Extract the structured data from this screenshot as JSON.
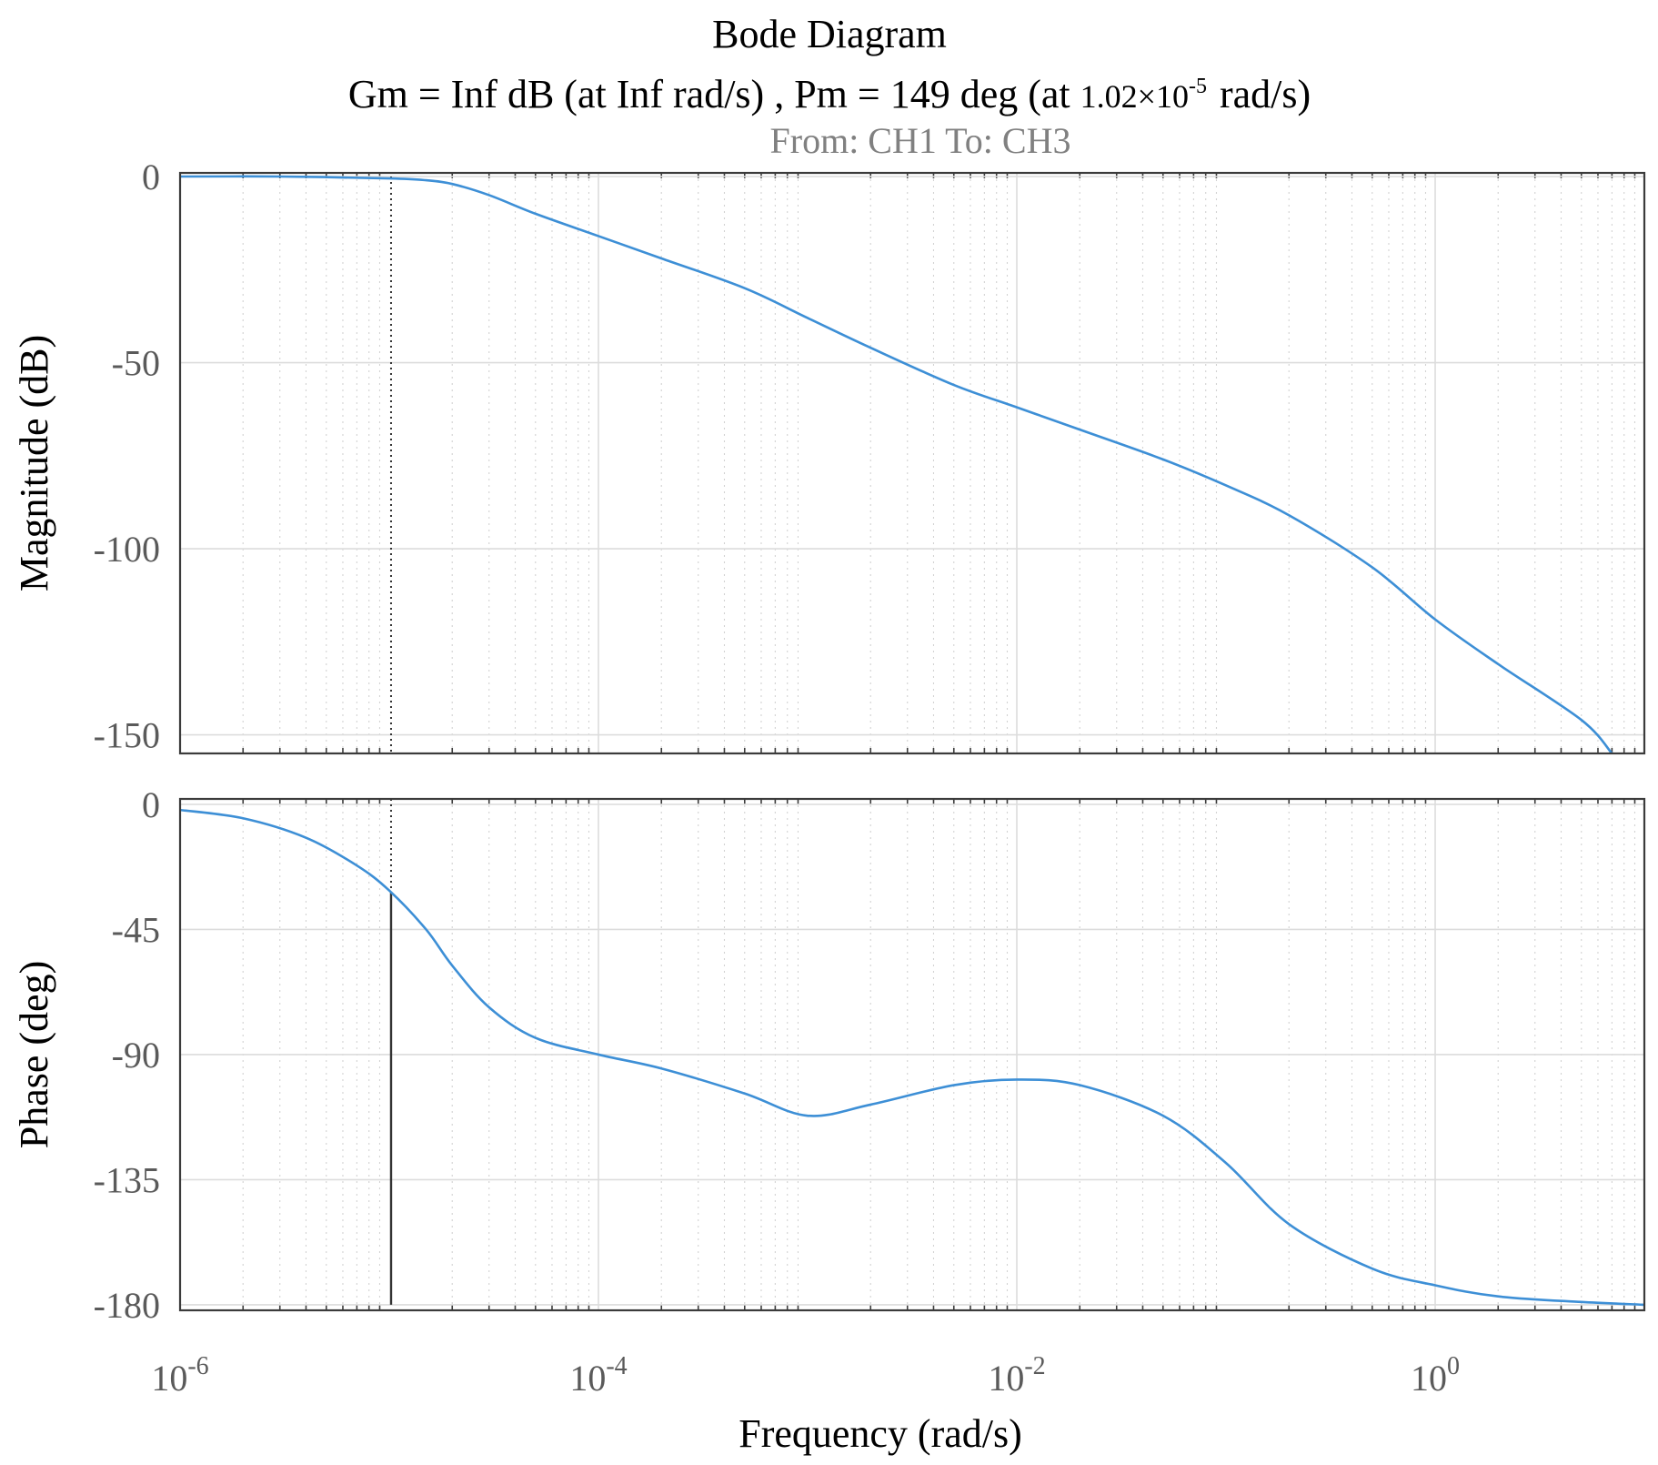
{
  "chart_data": {
    "type": "line",
    "title": "Bode Diagram",
    "subtitle": {
      "gm_text": "Gm = Inf dB (at Inf rad/s) ,  Pm = 149 deg (at ",
      "pm_freq_mantissa": "1.02×10",
      "pm_freq_exponent": "-5",
      "pm_freq_unit": "rad/s)"
    },
    "io_label": "From: CH1   To: CH3",
    "xlabel": "Frequency  (rad/s)",
    "xscale": "log",
    "xlim": [
      1e-06,
      10
    ],
    "x_ticks": [
      {
        "base": "10",
        "exp": "-6",
        "value": 1e-06
      },
      {
        "base": "10",
        "exp": "-4",
        "value": 0.0001
      },
      {
        "base": "10",
        "exp": "-2",
        "value": 0.01
      },
      {
        "base": "10",
        "exp": "0",
        "value": 1
      }
    ],
    "grid": true,
    "crossover_frequency": 1.02e-05,
    "panels": [
      {
        "name": "magnitude",
        "ylabel": "Magnitude (dB)",
        "ylim": [
          -155,
          0
        ],
        "y_ticks": [
          {
            "label": "0",
            "value": 0
          },
          {
            "label": "-50",
            "value": -50
          },
          {
            "label": "-100",
            "value": -100
          },
          {
            "label": "-150",
            "value": -150
          }
        ],
        "series": [
          {
            "x": [
              1e-06,
              3e-06,
              1e-05,
              1.5e-05,
              2e-05,
              3e-05,
              5e-05,
              0.0001,
              0.0002,
              0.0005,
              0.001,
              0.002,
              0.005,
              0.01,
              0.02,
              0.05,
              0.1,
              0.2,
              0.5,
              1,
              2,
              5,
              7
            ],
            "y": [
              0,
              0,
              -0.5,
              -1,
              -2,
              -5,
              -10,
              -16,
              -22,
              -30,
              -38,
              -46,
              -56,
              -62,
              -68,
              -76,
              -83,
              -91,
              -105,
              -119,
              -131,
              -146,
              -155
            ]
          }
        ]
      },
      {
        "name": "phase",
        "ylabel": "Phase (deg)",
        "ylim": [
          -182,
          0
        ],
        "y_ticks": [
          {
            "label": "0",
            "value": 0
          },
          {
            "label": "-45",
            "value": -45
          },
          {
            "label": "-90",
            "value": -90
          },
          {
            "label": "-135",
            "value": -135
          },
          {
            "label": "-180",
            "value": -180
          }
        ],
        "series": [
          {
            "x": [
              1e-06,
              2e-06,
              4e-06,
              7e-06,
              1e-05,
              1.5e-05,
              2e-05,
              3e-05,
              5e-05,
              0.0001,
              0.0002,
              0.0005,
              0.001,
              0.002,
              0.005,
              0.01,
              0.02,
              0.05,
              0.1,
              0.2,
              0.5,
              1,
              2,
              5,
              10
            ],
            "y": [
              -2,
              -5,
              -12,
              -22,
              -31,
              -45,
              -58,
              -73,
              -84,
              -90,
              -95,
              -104,
              -112,
              -108,
              -101,
              -99,
              -101,
              -112,
              -129,
              -151,
              -167,
              -173,
              -177,
              -179,
              -180
            ]
          }
        ]
      }
    ]
  }
}
